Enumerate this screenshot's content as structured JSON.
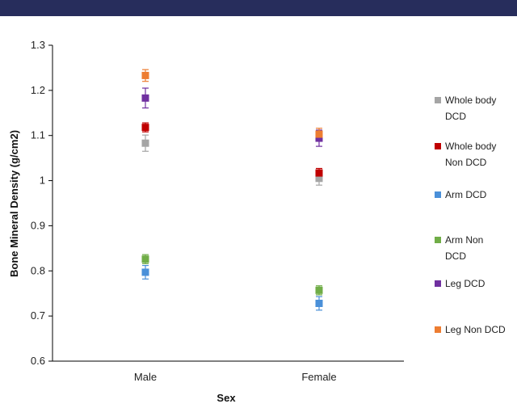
{
  "chart_data": {
    "type": "scatter",
    "categories": [
      "Male",
      "Female"
    ],
    "xlabel": "Sex",
    "ylabel": "Bone Mineral Density (g/cm2)",
    "ylim": [
      0.6,
      1.3
    ],
    "yticks": [
      "0.6",
      "0.7",
      "0.8",
      "0.9",
      "1",
      "1.1",
      "1.2",
      "1.3"
    ],
    "grid": false,
    "legend_position": "right",
    "series": [
      {
        "name": "Whole body DCD",
        "legend_lines": [
          "Whole body",
          "DCD"
        ],
        "color": "#a5a5a5",
        "values": [
          1.083,
          1.005
        ],
        "error": [
          0.018,
          0.015
        ]
      },
      {
        "name": "Whole body Non DCD",
        "legend_lines": [
          "Whole body",
          "Non DCD"
        ],
        "color": "#c00000",
        "values": [
          1.118,
          1.017
        ],
        "error": [
          0.01,
          0.01
        ]
      },
      {
        "name": "Arm DCD",
        "legend_lines": [
          "Arm DCD"
        ],
        "color": "#4a90d9",
        "values": [
          0.797,
          0.728
        ],
        "error": [
          0.015,
          0.015
        ]
      },
      {
        "name": "Arm Non DCD",
        "legend_lines": [
          "Arm Non",
          "DCD"
        ],
        "color": "#70ad47",
        "values": [
          0.826,
          0.757
        ],
        "error": [
          0.01,
          0.01
        ]
      },
      {
        "name": "Leg DCD",
        "legend_lines": [
          "Leg DCD"
        ],
        "color": "#7030a0",
        "values": [
          1.183,
          1.094
        ],
        "error": [
          0.022,
          0.018
        ]
      },
      {
        "name": "Leg Non DCD",
        "legend_lines": [
          "Leg Non DCD"
        ],
        "color": "#ed7d31",
        "values": [
          1.233,
          1.103
        ],
        "error": [
          0.013,
          0.013
        ]
      }
    ]
  }
}
